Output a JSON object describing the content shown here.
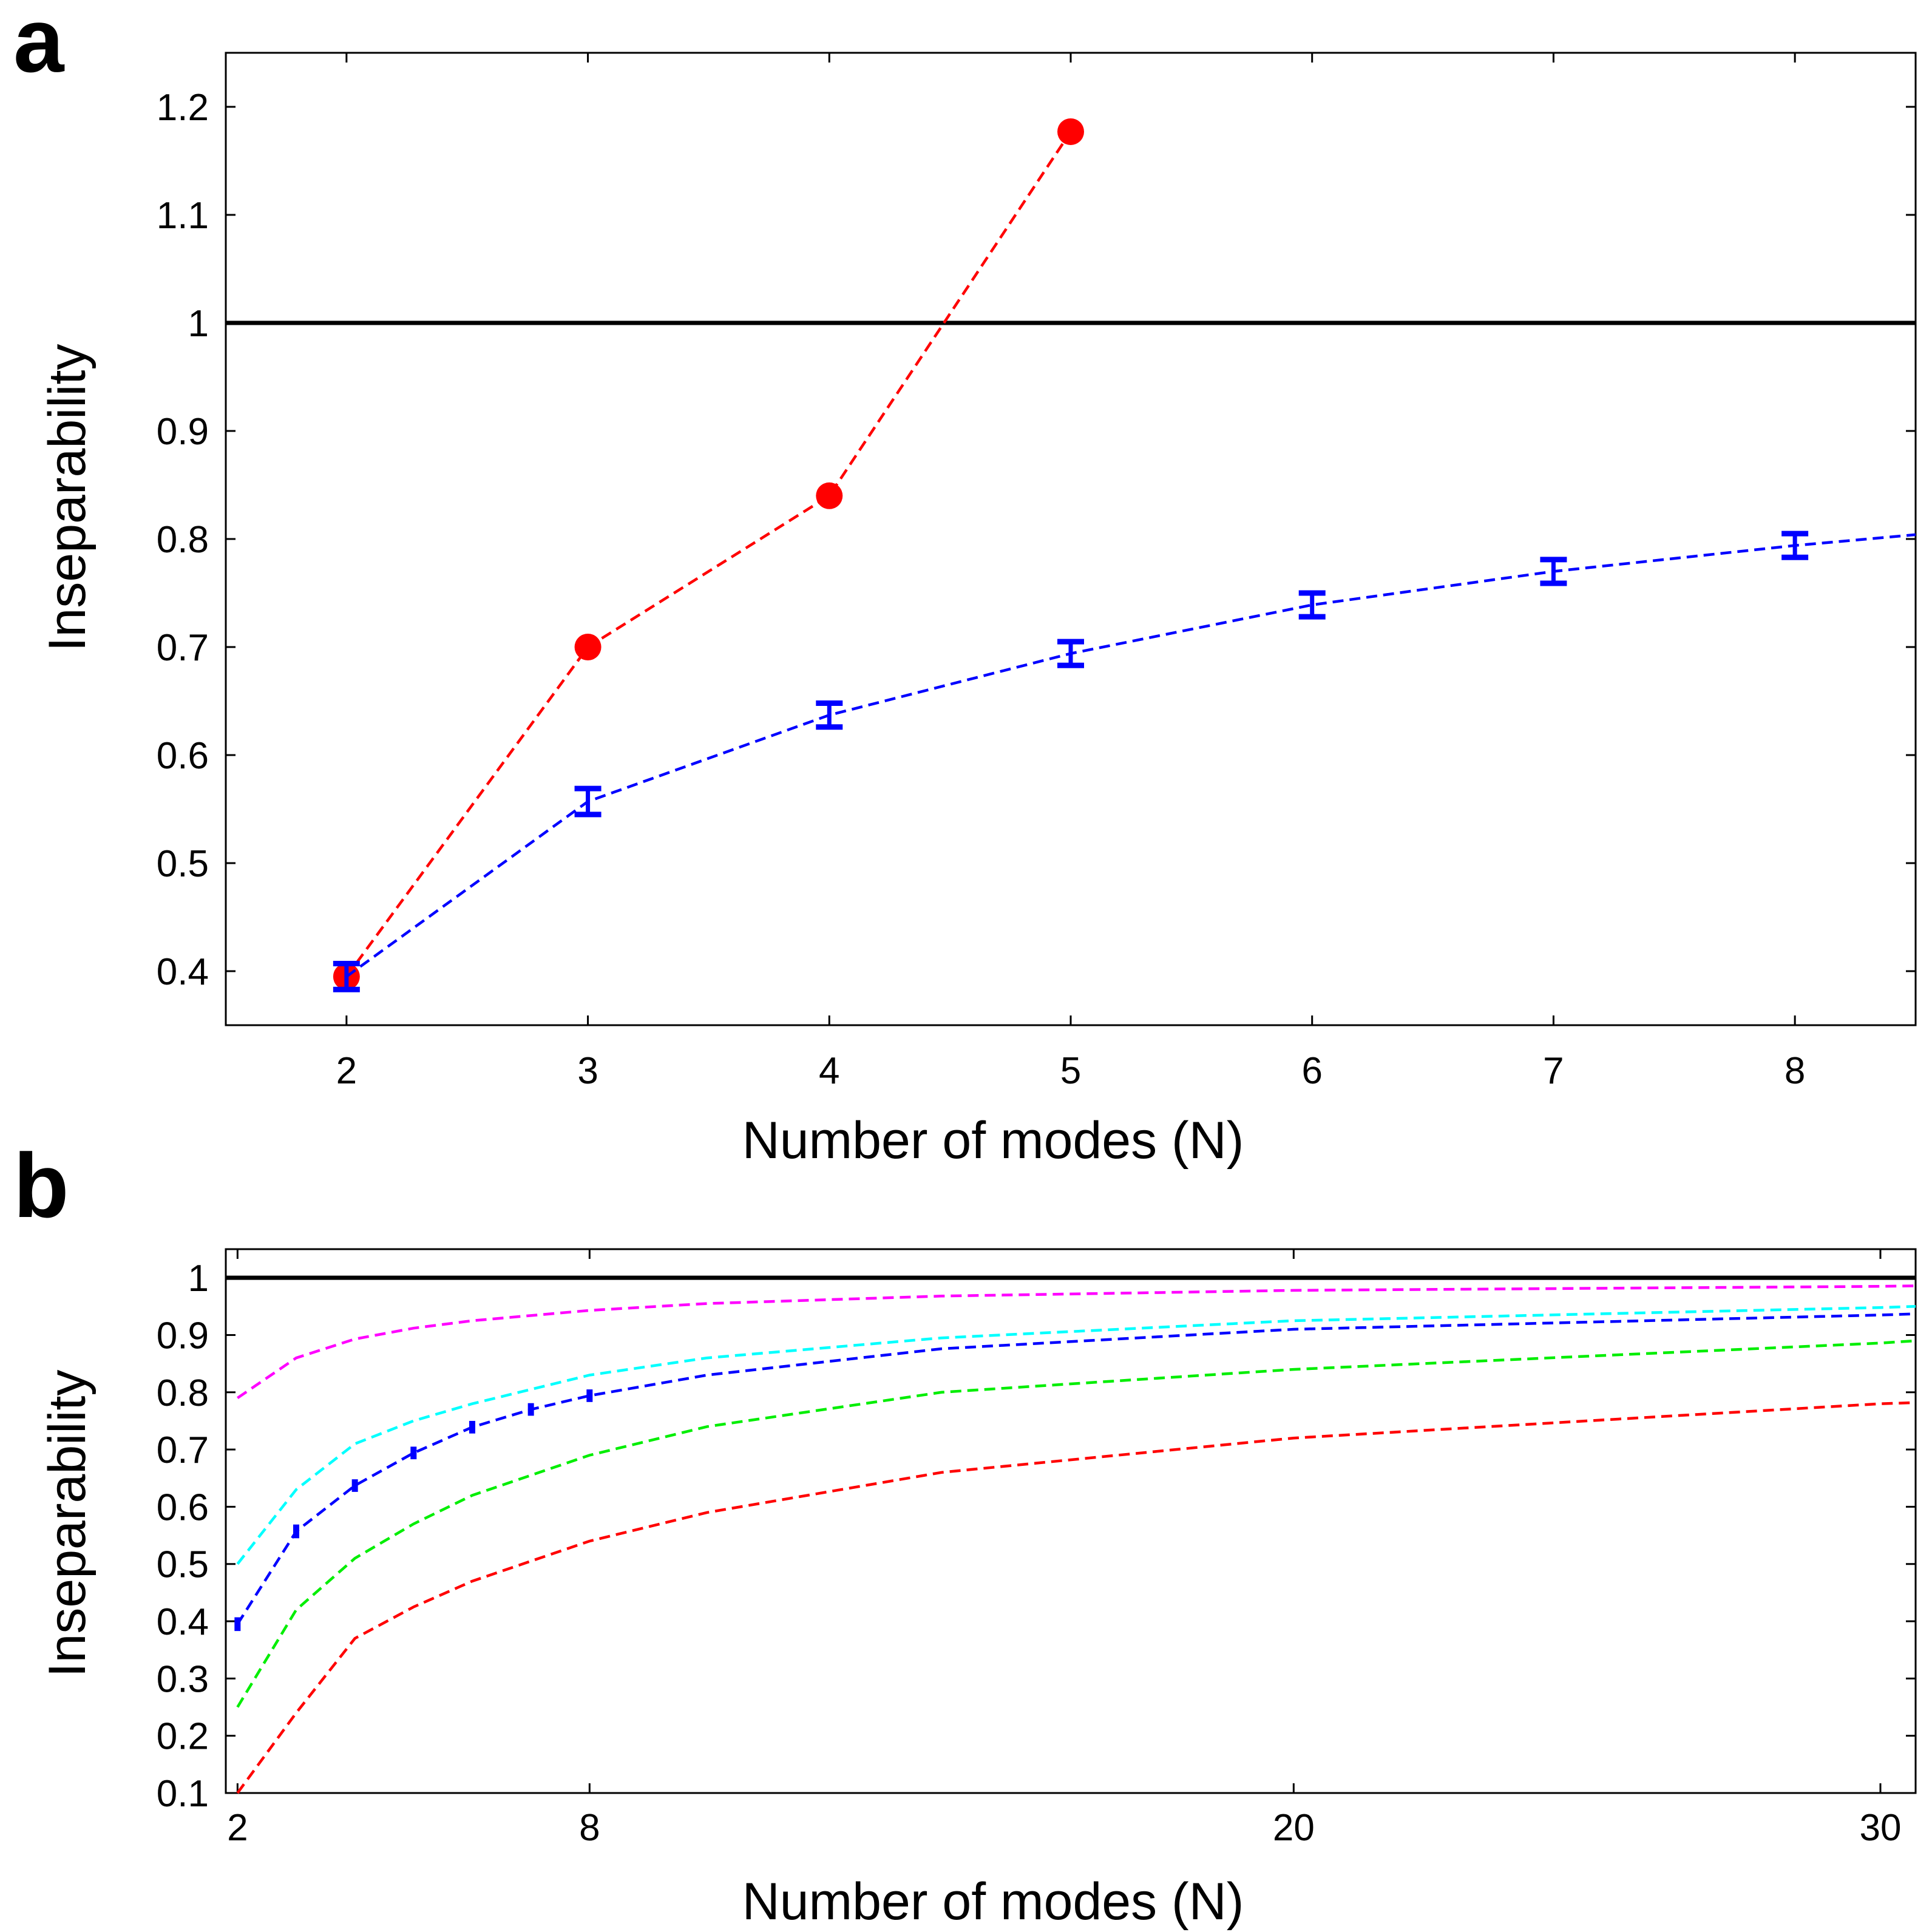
{
  "figure": {
    "panel_a_letter": "a",
    "panel_b_letter": "b"
  },
  "chart_data": [
    {
      "type": "line",
      "panel": "a",
      "xlabel": "Number of modes (N)",
      "ylabel": "Inseparability",
      "xlim": [
        1.5,
        8.5
      ],
      "ylim": [
        0.35,
        1.25
      ],
      "xticks": [
        2,
        3,
        4,
        5,
        6,
        7,
        8
      ],
      "yticks": [
        0.4,
        0.5,
        0.6,
        0.7,
        0.8,
        0.9,
        1,
        1.1,
        1.2
      ],
      "ytick_labels": [
        "0.4",
        "0.5",
        "0.6",
        "0.7",
        "0.8",
        "0.9",
        "1",
        "1.1",
        "1.2"
      ],
      "grid": false,
      "reference_line": {
        "y": 1,
        "color": "#000000",
        "style": "solid"
      },
      "series": [
        {
          "name": "red",
          "color": "#ff0000",
          "marker": "circle",
          "style": "dashed",
          "x": [
            2,
            3,
            4,
            5
          ],
          "values": [
            0.395,
            0.7,
            0.84,
            1.177
          ]
        },
        {
          "name": "blue",
          "color": "#0000ff",
          "marker": "errorbar",
          "style": "dashed",
          "x": [
            2,
            3,
            4,
            5,
            6,
            7,
            8
          ],
          "values": [
            0.395,
            0.557,
            0.637,
            0.694,
            0.739,
            0.77,
            0.794
          ],
          "errors": [
            0.012,
            0.012,
            0.011,
            0.011,
            0.011,
            0.011,
            0.011
          ],
          "curve_x": [
            2,
            3,
            4,
            5,
            6,
            7,
            8,
            8.5
          ],
          "curve_y": [
            0.395,
            0.557,
            0.637,
            0.694,
            0.739,
            0.77,
            0.794,
            0.804
          ]
        }
      ]
    },
    {
      "type": "line",
      "panel": "b",
      "xlabel": "Number of modes (N)",
      "ylabel": "Inseparability",
      "xlim": [
        1.8,
        30.6
      ],
      "ylim": [
        0.1,
        1.05
      ],
      "xticks": [
        2,
        8,
        20,
        30
      ],
      "yticks": [
        0.1,
        0.2,
        0.3,
        0.4,
        0.5,
        0.6,
        0.7,
        0.8,
        0.9,
        1
      ],
      "ytick_labels": [
        "0.1",
        "0.2",
        "0.3",
        "0.4",
        "0.5",
        "0.6",
        "0.7",
        "0.8",
        "0.9",
        "1"
      ],
      "grid": false,
      "reference_line": {
        "y": 1,
        "color": "#000000",
        "style": "solid"
      },
      "series": [
        {
          "name": "magenta",
          "color": "#ff00ff",
          "style": "dashed",
          "x": [
            2,
            3,
            4,
            5,
            6,
            8,
            10,
            14,
            20,
            30,
            30.6
          ],
          "values": [
            0.79,
            0.86,
            0.893,
            0.912,
            0.925,
            0.943,
            0.955,
            0.968,
            0.978,
            0.985,
            0.986
          ]
        },
        {
          "name": "cyan",
          "color": "#00ffff",
          "style": "dashed",
          "x": [
            2,
            3,
            4,
            5,
            6,
            8,
            10,
            14,
            20,
            30,
            30.6
          ],
          "values": [
            0.5,
            0.63,
            0.71,
            0.75,
            0.78,
            0.83,
            0.86,
            0.895,
            0.925,
            0.948,
            0.95
          ]
        },
        {
          "name": "blue",
          "color": "#0000ff",
          "style": "dashed",
          "x": [
            2,
            3,
            4,
            5,
            6,
            7,
            8,
            10,
            14,
            20,
            30,
            30.6
          ],
          "values": [
            0.395,
            0.557,
            0.637,
            0.694,
            0.739,
            0.77,
            0.794,
            0.83,
            0.876,
            0.91,
            0.935,
            0.937
          ]
        },
        {
          "name": "blue-points",
          "color": "#0000ff",
          "marker": "errorbar",
          "x": [
            2,
            3,
            4,
            5,
            6,
            7,
            8
          ],
          "values": [
            0.395,
            0.557,
            0.637,
            0.694,
            0.739,
            0.77,
            0.794
          ],
          "errors": [
            0.012,
            0.012,
            0.011,
            0.011,
            0.011,
            0.011,
            0.011
          ]
        },
        {
          "name": "green",
          "color": "#00ee00",
          "style": "dashed",
          "x": [
            2,
            3,
            4,
            5,
            6,
            8,
            10,
            14,
            20,
            30,
            30.6
          ],
          "values": [
            0.25,
            0.42,
            0.51,
            0.57,
            0.62,
            0.69,
            0.74,
            0.8,
            0.84,
            0.886,
            0.89
          ]
        },
        {
          "name": "red",
          "color": "#ff0000",
          "style": "dashed",
          "x": [
            2,
            3,
            4,
            5,
            6,
            8,
            10,
            14,
            20,
            30,
            30.6
          ],
          "values": [
            0.1,
            0.24,
            0.37,
            0.425,
            0.47,
            0.54,
            0.59,
            0.66,
            0.72,
            0.78,
            0.782
          ]
        }
      ]
    }
  ]
}
